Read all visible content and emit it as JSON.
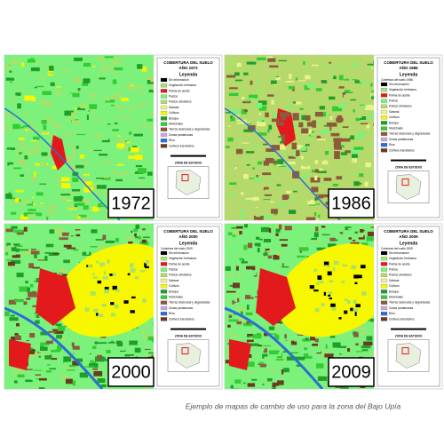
{
  "panels": [
    {
      "title": "COBERTURA DEL SUELO",
      "subtitle": "AÑO 1972",
      "legend_title": "Leyenda",
      "year": "1972",
      "zone": "ZONA DE ESTUDIO"
    },
    {
      "title": "COBERTURA DEL SUELO",
      "subtitle": "AÑO 1986",
      "legend_title": "Leyenda",
      "legend_subtitle": "Cobertura del suelo 1986",
      "year": "1986",
      "zone": "ZONA DE ESTUDIO"
    },
    {
      "title": "COBERTURA DEL SUELO",
      "subtitle": "AÑO 2000",
      "legend_title": "Leyenda",
      "legend_subtitle": "Cobertura del suelo 2000",
      "year": "2000",
      "zone": "ZONA DE ESTUDIO"
    },
    {
      "title": "COBERTURA DEL SUELO",
      "subtitle": "AÑO 2009",
      "legend_title": "Leyenda",
      "legend_subtitle": "Cobertura del suelo 2009",
      "year": "2009",
      "zone": "ZONA DE ESTUDIO"
    }
  ],
  "legend_items": [
    {
      "label": "Sin información",
      "color": "#000000"
    },
    {
      "label": "Vegetación herbácea",
      "color": "#a6e36b"
    },
    {
      "label": "Palma de aceite",
      "color": "#e31a1c"
    },
    {
      "label": "Pastos",
      "color": "#7cf27c"
    },
    {
      "label": "Pastos arbolados",
      "color": "#b5d96a"
    },
    {
      "label": "Sabana",
      "color": "#e9f28c"
    },
    {
      "label": "Cultivos",
      "color": "#f7f700"
    },
    {
      "label": "Bosque",
      "color": "#1f9e2a"
    },
    {
      "label": "Morichales",
      "color": "#33cc33"
    },
    {
      "label": "Tierras desnudas y degradadas",
      "color": "#8c5a3c"
    },
    {
      "label": "Zonas pantanosas",
      "color": "#c9a8e0"
    },
    {
      "label": "Ríos",
      "color": "#2b6fd6"
    },
    {
      "label": "Cultivos transitorios",
      "color": "#6b3a1f"
    }
  ],
  "caption": "Ejemplo de mapas de cambio de uso para la zona del Bajo Upía"
}
